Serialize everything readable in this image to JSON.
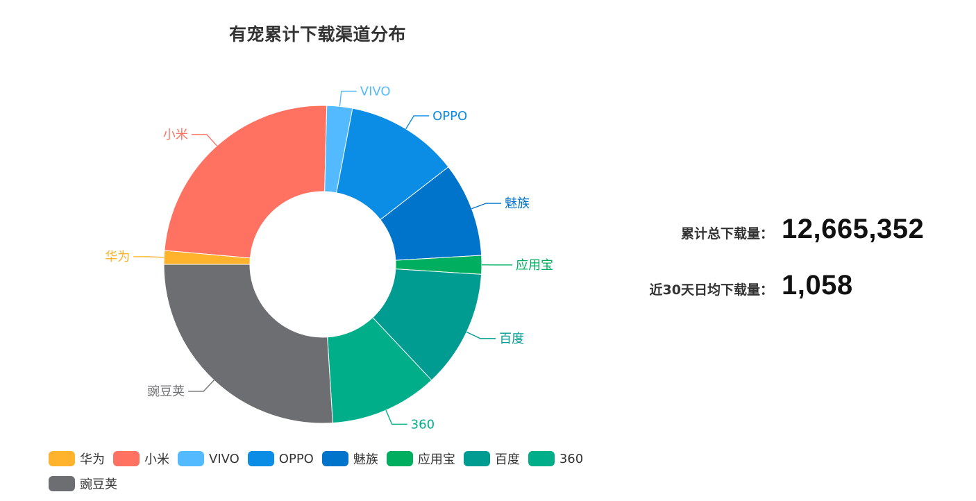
{
  "chart_data": {
    "type": "pie",
    "title": "有宠累计下载渠道分布",
    "donut": true,
    "legend_position": "bottom",
    "slices": [
      {
        "name": "华为",
        "value": 1.4,
        "color": "#FFB22C"
      },
      {
        "name": "小米",
        "value": 24.0,
        "color": "#FF7262"
      },
      {
        "name": "VIVO",
        "value": 2.6,
        "color": "#54BAFF"
      },
      {
        "name": "OPPO",
        "value": 11.5,
        "color": "#0B8CE5"
      },
      {
        "name": "魅族",
        "value": 9.6,
        "color": "#0073CB"
      },
      {
        "name": "应用宝",
        "value": 1.9,
        "color": "#00AE5F"
      },
      {
        "name": "百度",
        "value": 12.0,
        "color": "#009C92"
      },
      {
        "name": "360",
        "value": 11.0,
        "color": "#00AE89"
      },
      {
        "name": "豌豆荚",
        "value": 26.0,
        "color": "#6D6E71"
      }
    ]
  },
  "stats": {
    "total_label": "累计总下载量：",
    "total_value": "12,665,352",
    "daily_label": "近30天日均下载量：",
    "daily_value": "1,058"
  }
}
